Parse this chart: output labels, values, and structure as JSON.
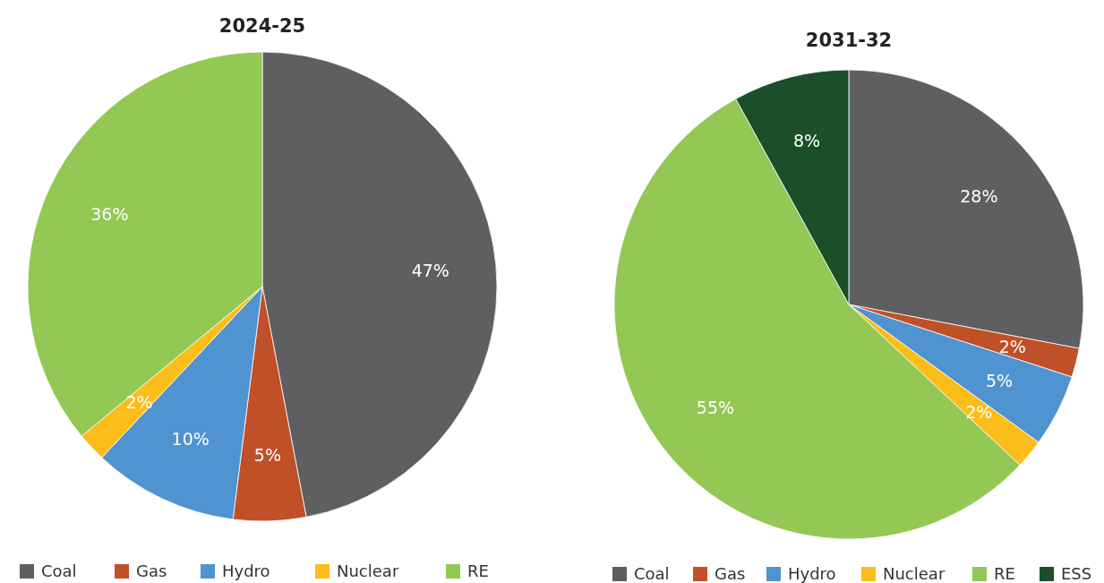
{
  "chart_data": [
    {
      "type": "pie",
      "title": "2024-25",
      "categories": [
        "Coal",
        "Gas",
        "Hydro",
        "Nuclear",
        "RE"
      ],
      "values": [
        47,
        5,
        10,
        2,
        36
      ],
      "colors": [
        "#5f5e60",
        "#c05027",
        "#4f93d0",
        "#fbbd19",
        "#92c853"
      ],
      "value_labels": [
        "47%",
        "5%",
        "10%",
        "2%",
        "36%"
      ],
      "legend": "bottom"
    },
    {
      "type": "pie",
      "title": "2031-32",
      "categories": [
        "Coal",
        "Gas",
        "Hydro",
        "Nuclear",
        "RE",
        "ESS"
      ],
      "values": [
        28,
        2,
        5,
        2,
        55,
        8
      ],
      "colors": [
        "#5f5e60",
        "#c05027",
        "#4f93d0",
        "#fbbd19",
        "#92c853",
        "#1a4f2a"
      ],
      "value_labels": [
        "28%",
        "2%",
        "5%",
        "2%",
        "55%",
        "8%"
      ],
      "legend": "bottom"
    }
  ]
}
